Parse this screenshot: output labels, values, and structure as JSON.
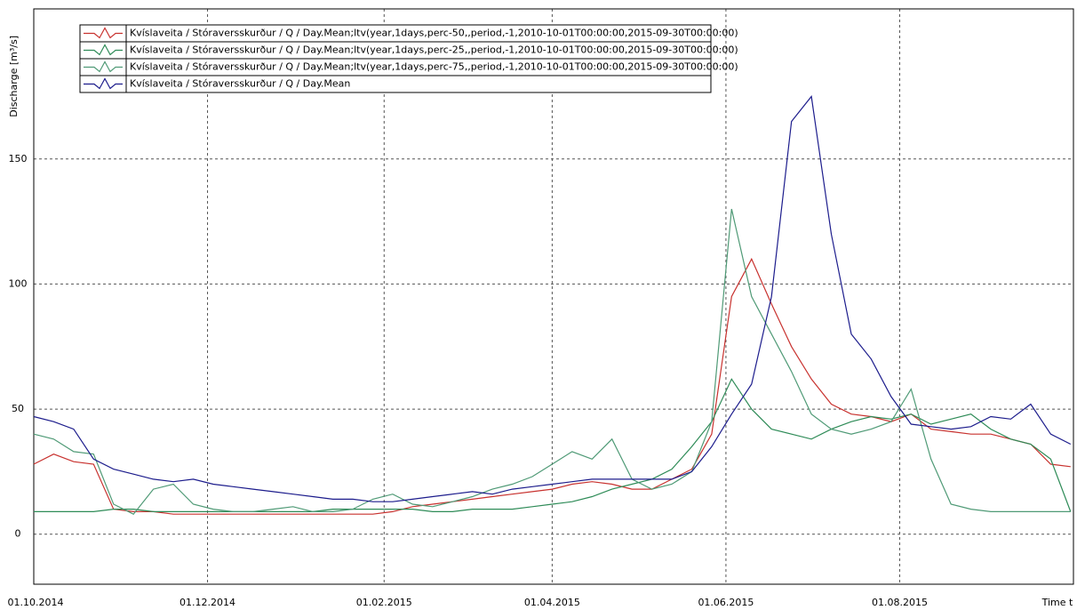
{
  "chart_data": {
    "type": "line",
    "y_label": "Discharge [m³/s]",
    "x_label": "Time t",
    "x": [
      "2014-10-01",
      "2014-10-08",
      "2014-10-15",
      "2014-10-22",
      "2014-10-29",
      "2014-11-05",
      "2014-11-12",
      "2014-11-19",
      "2014-11-26",
      "2014-12-03",
      "2014-12-10",
      "2014-12-17",
      "2014-12-24",
      "2014-12-31",
      "2015-01-07",
      "2015-01-14",
      "2015-01-21",
      "2015-01-28",
      "2015-02-04",
      "2015-02-11",
      "2015-02-18",
      "2015-02-25",
      "2015-03-04",
      "2015-03-11",
      "2015-03-18",
      "2015-03-25",
      "2015-04-01",
      "2015-04-08",
      "2015-04-15",
      "2015-04-22",
      "2015-04-29",
      "2015-05-06",
      "2015-05-13",
      "2015-05-20",
      "2015-05-27",
      "2015-06-03",
      "2015-06-10",
      "2015-06-17",
      "2015-06-24",
      "2015-07-01",
      "2015-07-08",
      "2015-07-15",
      "2015-07-22",
      "2015-07-29",
      "2015-08-05",
      "2015-08-12",
      "2015-08-19",
      "2015-08-26",
      "2015-09-02",
      "2015-09-09",
      "2015-09-16",
      "2015-09-23",
      "2015-09-30"
    ],
    "series": [
      {
        "name": "Kvíslaveita / Stóraversskurður / Q / Day.Mean;ltv(year,1days,perc-50,,period,-1,2010-10-01T00:00:00,2015-09-30T00:00:00)",
        "color": "#c8322f",
        "values": [
          28,
          32,
          29,
          28,
          10,
          9,
          9,
          8,
          8,
          8,
          8,
          8,
          8,
          8,
          8,
          8,
          8,
          8,
          9,
          11,
          12,
          13,
          14,
          15,
          16,
          17,
          18,
          20,
          21,
          20,
          18,
          18,
          22,
          26,
          40,
          95,
          110,
          92,
          75,
          62,
          52,
          48,
          47,
          45,
          48,
          42,
          41,
          40,
          40,
          38,
          36,
          28,
          27
        ]
      },
      {
        "name": "Kvíslaveita / Stóraversskurður / Q / Day.Mean;ltv(year,1days,perc-25,,period,-1,2010-10-01T00:00:00,2015-09-30T00:00:00)",
        "color": "#2e8b57",
        "values": [
          9,
          9,
          9,
          9,
          10,
          10,
          9,
          9,
          9,
          9,
          9,
          9,
          9,
          9,
          9,
          10,
          10,
          10,
          10,
          10,
          9,
          9,
          10,
          10,
          10,
          11,
          12,
          13,
          15,
          18,
          20,
          22,
          26,
          35,
          45,
          62,
          50,
          42,
          40,
          38,
          42,
          45,
          47,
          46,
          48,
          44,
          46,
          48,
          42,
          38,
          36,
          30,
          9
        ]
      },
      {
        "name": "Kvíslaveita / Stóraversskurður / Q / Day.Mean;ltv(year,1days,perc-75,,period,-1,2010-10-01T00:00:00,2015-09-30T00:00:00)",
        "color": "#4f9a76",
        "values": [
          40,
          38,
          33,
          32,
          12,
          8,
          18,
          20,
          12,
          10,
          9,
          9,
          10,
          11,
          9,
          9,
          10,
          14,
          16,
          12,
          11,
          13,
          15,
          18,
          20,
          23,
          28,
          33,
          30,
          38,
          22,
          18,
          20,
          25,
          45,
          130,
          95,
          80,
          65,
          48,
          42,
          40,
          42,
          45,
          58,
          30,
          12,
          10,
          9,
          9,
          9,
          9,
          9
        ]
      },
      {
        "name": "Kvíslaveita / Stóraversskurður / Q / Day.Mean",
        "color": "#1c1c8c",
        "values": [
          47,
          45,
          42,
          30,
          26,
          24,
          22,
          21,
          22,
          20,
          19,
          18,
          17,
          16,
          15,
          14,
          14,
          13,
          13,
          14,
          15,
          16,
          17,
          16,
          18,
          19,
          20,
          21,
          22,
          22,
          22,
          22,
          22,
          25,
          35,
          48,
          60,
          95,
          165,
          175,
          120,
          80,
          70,
          55,
          44,
          43,
          42,
          43,
          47,
          46,
          52,
          40,
          36
        ]
      }
    ],
    "xlim": [
      "2014-10-01",
      "2015-10-01"
    ],
    "xticks": [
      {
        "value": "2014-10-01",
        "label": "01.10.2014"
      },
      {
        "value": "2014-12-01",
        "label": "01.12.2014"
      },
      {
        "value": "2015-02-01",
        "label": "01.02.2015"
      },
      {
        "value": "2015-04-01",
        "label": "01.04.2015"
      },
      {
        "value": "2015-06-01",
        "label": "01.06.2015"
      },
      {
        "value": "2015-08-01",
        "label": "01.08.2015"
      }
    ],
    "ylim": [
      -20,
      210
    ],
    "yticks": [
      0,
      50,
      100,
      150
    ],
    "grid": true
  }
}
